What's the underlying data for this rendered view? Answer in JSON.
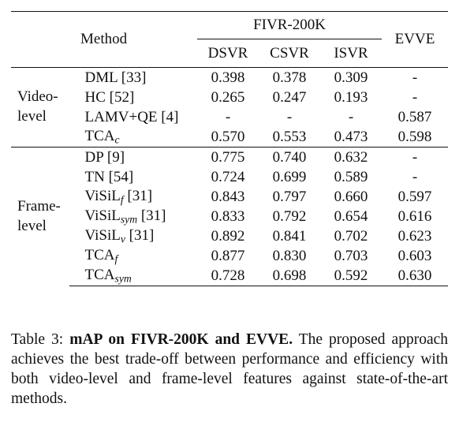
{
  "table": {
    "header": {
      "method": "Method",
      "fivr": "FIVR-200K",
      "evve": "EVVE",
      "dsvr": "DSVR",
      "csvr": "CSVR",
      "isvr": "ISVR"
    },
    "groups": [
      {
        "label_line1": "Video-",
        "label_line2": "level",
        "rows": [
          {
            "method": "DML [33]",
            "method_base": "",
            "method_sub": "",
            "method_suffix": "",
            "dsvr": "0.398",
            "csvr": "0.378",
            "isvr": "0.309",
            "evve": "-"
          },
          {
            "method": "HC [52]",
            "method_base": "",
            "method_sub": "",
            "method_suffix": "",
            "dsvr": "0.265",
            "csvr": "0.247",
            "isvr": "0.193",
            "evve": "-"
          },
          {
            "method": "LAMV+QE [4]",
            "method_base": "",
            "method_sub": "",
            "method_suffix": "",
            "dsvr": "-",
            "csvr": "-",
            "isvr": "-",
            "evve": "0.587"
          },
          {
            "method": "",
            "method_base": "TCA",
            "method_sub": "c",
            "method_suffix": "",
            "dsvr": "0.570",
            "csvr": "0.553",
            "isvr": "0.473",
            "evve": "0.598"
          }
        ]
      },
      {
        "label_line1": "Frame-",
        "label_line2": "level",
        "rows": [
          {
            "method": "DP [9]",
            "method_base": "",
            "method_sub": "",
            "method_suffix": "",
            "dsvr": "0.775",
            "csvr": "0.740",
            "isvr": "0.632",
            "evve": "-"
          },
          {
            "method": "TN [54]",
            "method_base": "",
            "method_sub": "",
            "method_suffix": "",
            "dsvr": "0.724",
            "csvr": "0.699",
            "isvr": "0.589",
            "evve": "-"
          },
          {
            "method": "",
            "method_base": "ViSiL",
            "method_sub": "f",
            "method_suffix": " [31]",
            "dsvr": "0.843",
            "csvr": "0.797",
            "isvr": "0.660",
            "evve": "0.597"
          },
          {
            "method": "",
            "method_base": "ViSiL",
            "method_sub": "sym",
            "method_suffix": " [31]",
            "dsvr": "0.833",
            "csvr": "0.792",
            "isvr": "0.654",
            "evve": "0.616"
          },
          {
            "method": "",
            "method_base": "ViSiL",
            "method_sub": "v",
            "method_suffix": " [31]",
            "dsvr": "0.892",
            "csvr": "0.841",
            "isvr": "0.702",
            "evve": "0.623"
          },
          {
            "method": "",
            "method_base": "TCA",
            "method_sub": "f",
            "method_suffix": "",
            "dsvr": "0.877",
            "csvr": "0.830",
            "isvr": "0.703",
            "evve": "0.603"
          },
          {
            "method": "",
            "method_base": "TCA",
            "method_sub": "sym",
            "method_suffix": "",
            "dsvr": "0.728",
            "csvr": "0.698",
            "isvr": "0.592",
            "evve": "0.630"
          }
        ]
      }
    ]
  },
  "caption": {
    "label": "Table 3: ",
    "title": "mAP on FIVR-200K and EVVE.",
    "text": " The proposed approach achieves the best trade-off between performance and efficiency with both video-level and frame-level features against state-of-the-art methods."
  }
}
